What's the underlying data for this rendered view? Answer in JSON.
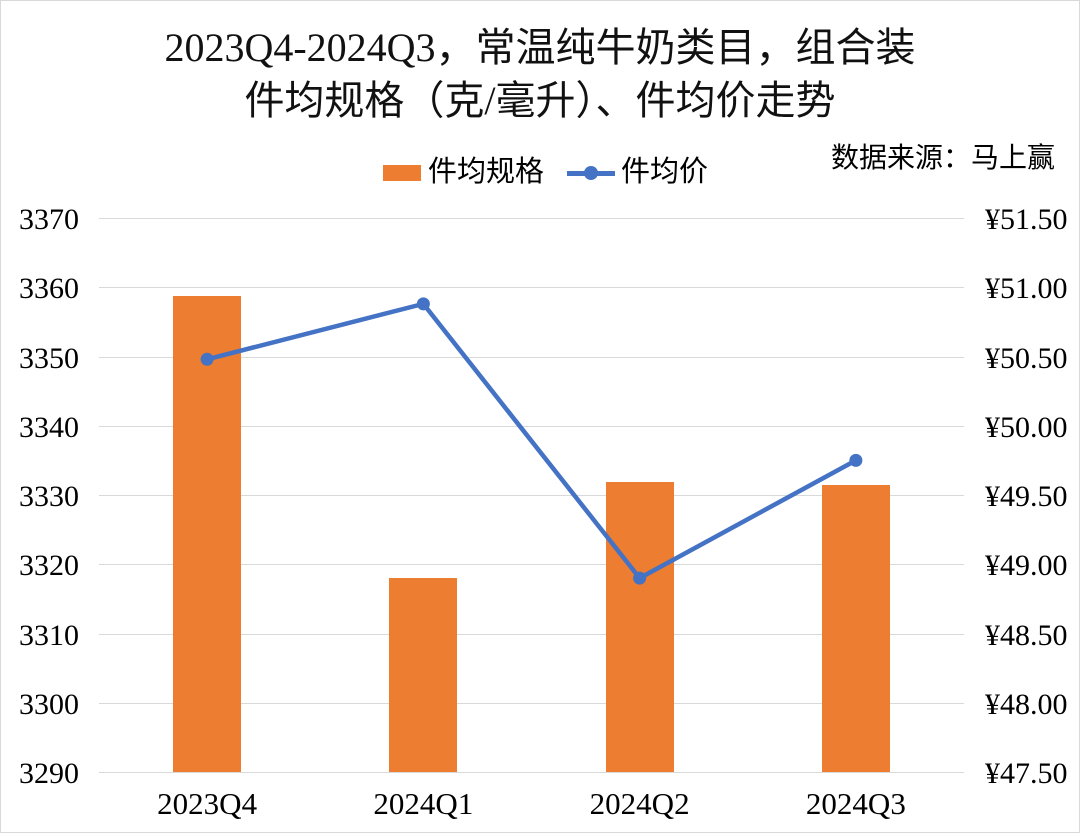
{
  "title": {
    "line1": "2023Q4-2024Q3，常温纯牛奶类目，组合装",
    "line2": "件均规格（克/毫升）、件均价走势"
  },
  "source_note": "数据来源：马上赢",
  "colors": {
    "bar": "#ED7D31",
    "line": "#4472C4",
    "grid": "#D9D9D9",
    "text": "#000000"
  },
  "legend": {
    "bar_label": "件均规格",
    "line_label": "件均价"
  },
  "chart_data": {
    "type": "bar+line",
    "categories": [
      "2023Q4",
      "2024Q1",
      "2024Q2",
      "2024Q3"
    ],
    "series": [
      {
        "name": "件均规格",
        "type": "bar",
        "axis": "left",
        "color": "#ED7D31",
        "values": [
          3358.7,
          3318.0,
          3331.9,
          3331.5
        ]
      },
      {
        "name": "件均价",
        "type": "line",
        "axis": "right",
        "color": "#4472C4",
        "values": [
          50.48,
          50.88,
          48.9,
          49.75
        ]
      }
    ],
    "left_axis": {
      "min": 3290,
      "max": 3370,
      "step": 10,
      "tick_labels": [
        "3370",
        "3360",
        "3350",
        "3340",
        "3330",
        "3320",
        "3310",
        "3300",
        "3290"
      ]
    },
    "right_axis": {
      "min": 47.5,
      "max": 51.5,
      "step": 0.5,
      "tick_labels": [
        "¥51.50",
        "¥51.00",
        "¥50.50",
        "¥50.00",
        "¥49.50",
        "¥49.00",
        "¥48.50",
        "¥48.00",
        "¥47.50"
      ]
    },
    "grid": true,
    "legend_position": "top"
  }
}
